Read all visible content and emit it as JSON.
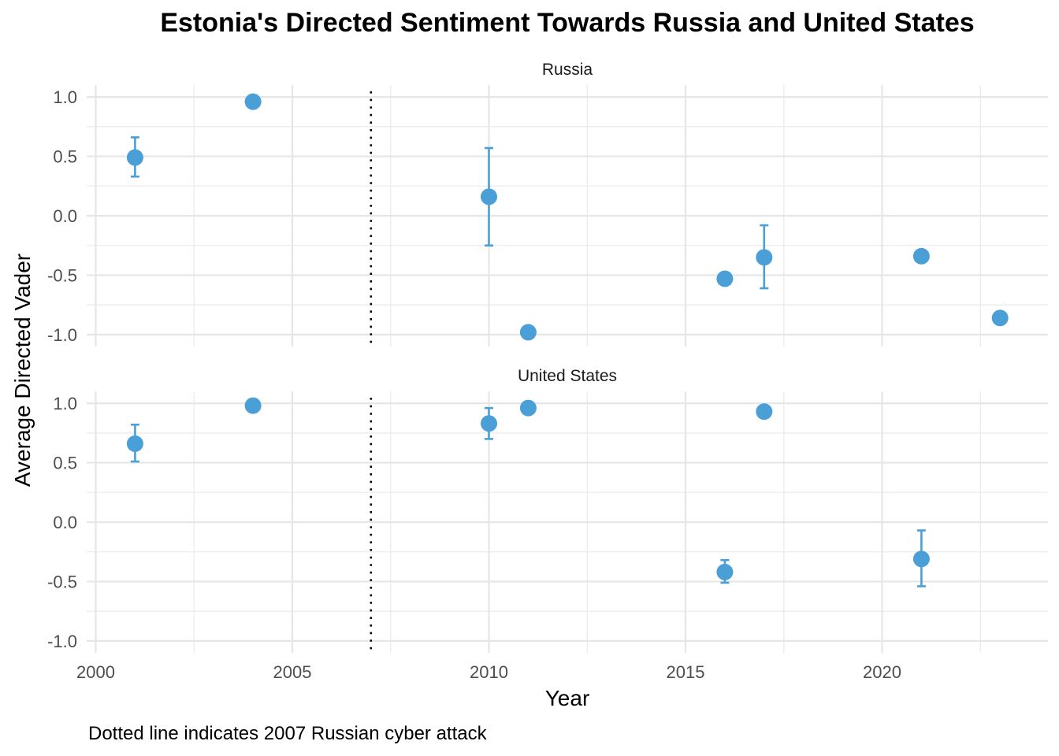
{
  "chart_data": {
    "type": "scatter",
    "title": "Estonia's Directed Sentiment Towards Russia and United States",
    "xlabel": "Year",
    "ylabel": "Average Directed Vader",
    "caption": "Dotted line indicates 2007 Russian cyber attack",
    "xlim": [
      2000,
      2024
    ],
    "ylim": [
      -1.1,
      1.1
    ],
    "x_ticks": [
      2000,
      2005,
      2010,
      2015,
      2020
    ],
    "y_ticks": [
      1.0,
      0.5,
      0.0,
      -0.5,
      -1.0
    ],
    "x_tick_labels": [
      "2000",
      "2005",
      "2010",
      "2015",
      "2020"
    ],
    "y_tick_labels": [
      "1.0",
      "0.5",
      "0.0",
      "-0.5",
      "-1.0"
    ],
    "reference_line": {
      "x": 2007,
      "style": "dotted"
    },
    "grid": true,
    "point_color": "#4a9fd6",
    "panels": [
      {
        "label": "Russia",
        "points": [
          {
            "x": 2001,
            "y": 0.49,
            "lo": 0.33,
            "hi": 0.66
          },
          {
            "x": 2004,
            "y": 0.96
          },
          {
            "x": 2010,
            "y": 0.16,
            "lo": -0.25,
            "hi": 0.57
          },
          {
            "x": 2011,
            "y": -0.98
          },
          {
            "x": 2016,
            "y": -0.53
          },
          {
            "x": 2017,
            "y": -0.35,
            "lo": -0.61,
            "hi": -0.08
          },
          {
            "x": 2021,
            "y": -0.34
          },
          {
            "x": 2023,
            "y": -0.86
          }
        ]
      },
      {
        "label": "United States",
        "points": [
          {
            "x": 2001,
            "y": 0.66,
            "lo": 0.51,
            "hi": 0.82
          },
          {
            "x": 2004,
            "y": 0.98
          },
          {
            "x": 2010,
            "y": 0.83,
            "lo": 0.7,
            "hi": 0.96
          },
          {
            "x": 2011,
            "y": 0.96
          },
          {
            "x": 2016,
            "y": -0.42,
            "lo": -0.51,
            "hi": -0.32
          },
          {
            "x": 2017,
            "y": 0.93
          },
          {
            "x": 2021,
            "y": -0.31,
            "lo": -0.54,
            "hi": -0.07
          }
        ]
      }
    ]
  }
}
